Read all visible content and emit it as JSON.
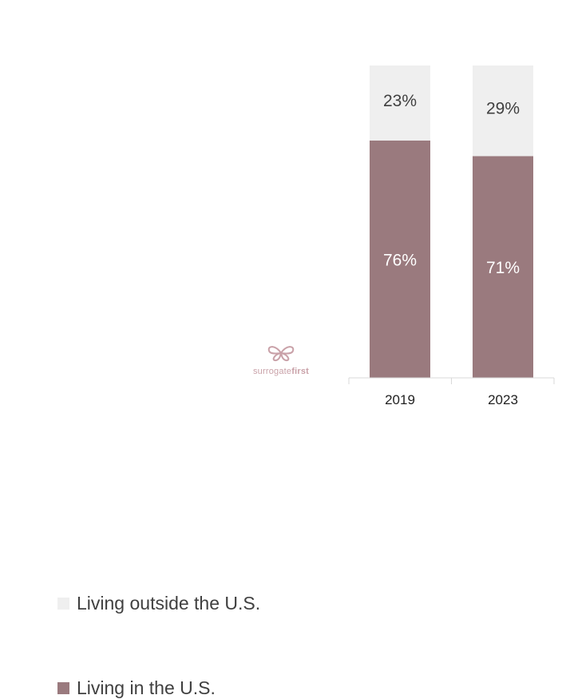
{
  "chart_data": {
    "type": "bar",
    "stacked": true,
    "categories": [
      "2019",
      "2023"
    ],
    "series": [
      {
        "name": "Living in the U.S.",
        "values": [
          76,
          71
        ],
        "labels": [
          "76%",
          "71%"
        ],
        "color": "#9a7a7e"
      },
      {
        "name": "Living outside the U.S.",
        "values": [
          23,
          29
        ],
        "labels": [
          "23%",
          "29%"
        ],
        "color": "#efefef"
      }
    ],
    "ylim": [
      0,
      100
    ],
    "legend_position": "left",
    "grid": false
  },
  "legend": {
    "outside_label": "Living outside the U.S.",
    "inside_label": "Living in the U.S."
  },
  "logo": {
    "icon": "butterfly-icon",
    "text_regular": "surrogate",
    "text_bold": "first",
    "color": "#c9a1a8"
  }
}
